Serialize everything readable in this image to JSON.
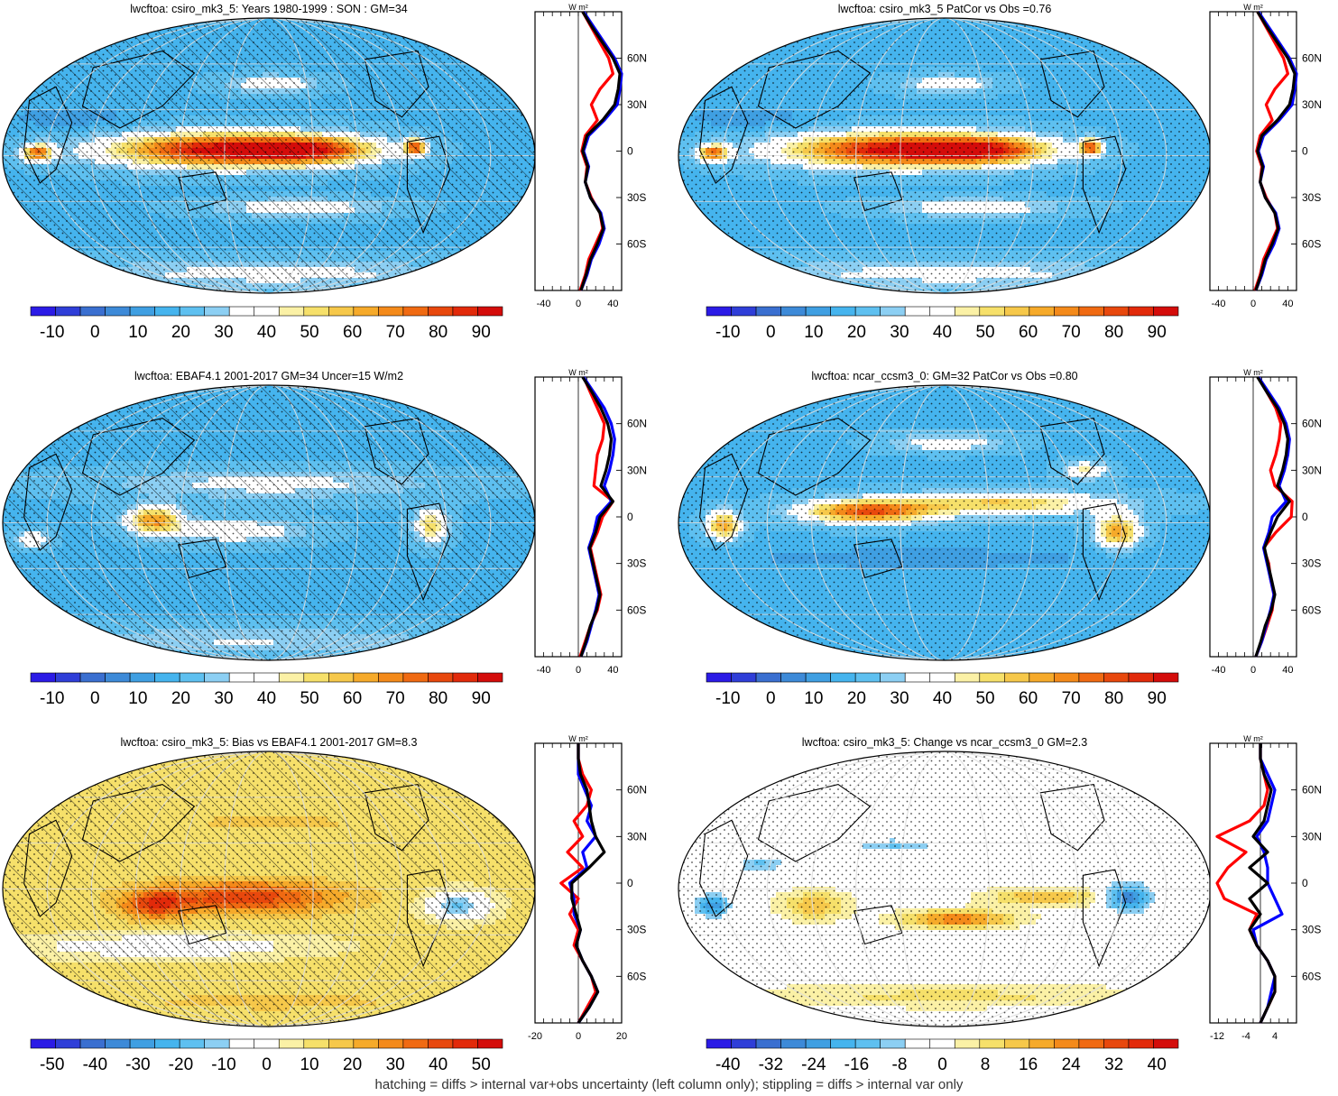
{
  "footer": "hatching = diffs > internal var+obs uncertainty (left column only); stippling = diffs > internal var only",
  "colors": {
    "model": "#ff0000",
    "reference": "#0000ff",
    "third": "#000000",
    "full_scale": [
      "#2b1be6",
      "#2f3ed8",
      "#3a6fd0",
      "#3d8ad8",
      "#3f9fe2",
      "#45b4ee",
      "#5ec0f0",
      "#8ccff3",
      "#ffffff",
      "#ffffff",
      "#fbf1a6",
      "#f6e06a",
      "#f6c84a",
      "#f6aa2a",
      "#f48a1a",
      "#f06a12",
      "#e8480d",
      "#e22a0a",
      "#d40c0a"
    ]
  },
  "panels": [
    {
      "id": "model-climatology",
      "title": "lwcftoa: csiro_mk3_5: Years 1980-1999 : SON : GM=34",
      "hatch": true,
      "stipple": true,
      "colorbar_labels": [
        "-10",
        "0",
        "10",
        "20",
        "30",
        "40",
        "50",
        "60",
        "70",
        "80",
        "90"
      ],
      "field": "model"
    },
    {
      "id": "model-ccsm-pattern",
      "title": "lwcftoa: csiro_mk3_5 PatCor vs Obs =0.76",
      "hatch": false,
      "stipple": true,
      "colorbar_labels": [
        "-10",
        "0",
        "10",
        "20",
        "30",
        "40",
        "50",
        "60",
        "70",
        "80",
        "90"
      ],
      "field": "model"
    },
    {
      "id": "obs-climatology",
      "title": "lwcftoa: EBAF4.1 2001-2017 GM=34 Uncer=15 W/m2",
      "hatch": true,
      "stipple": true,
      "colorbar_labels": [
        "-10",
        "0",
        "10",
        "20",
        "30",
        "40",
        "50",
        "60",
        "70",
        "80",
        "90"
      ],
      "field": "obs"
    },
    {
      "id": "ccsm-climatology",
      "title": "lwcftoa: ncar_ccsm3_0: GM=32 PatCor vs Obs =0.80",
      "hatch": false,
      "stipple": true,
      "colorbar_labels": [
        "-10",
        "0",
        "10",
        "20",
        "30",
        "40",
        "50",
        "60",
        "70",
        "80",
        "90"
      ],
      "field": "ccsm"
    },
    {
      "id": "bias",
      "title": "lwcftoa: csiro_mk3_5: Bias vs EBAF4.1 2001-2017  GM=8.3",
      "hatch": true,
      "stipple": true,
      "colorbar_labels": [
        "-50",
        "-40",
        "-30",
        "-20",
        "-10",
        "0",
        "10",
        "20",
        "30",
        "40",
        "50"
      ],
      "field": "bias"
    },
    {
      "id": "change",
      "title": "lwcftoa: csiro_mk3_5: Change vs ncar_ccsm3_0 GM=2.3",
      "hatch": false,
      "stipple": true,
      "colorbar_labels": [
        "-40",
        "-32",
        "-24",
        "-16",
        "-8",
        "0",
        "8",
        "16",
        "24",
        "32",
        "40"
      ],
      "field": "change"
    }
  ],
  "chart_data": [
    {
      "type": "line",
      "panel": "model-climatology",
      "unit_label": "W m²",
      "xlim": [
        -50,
        50
      ],
      "x_ticks": [
        "-40",
        "0",
        "40"
      ],
      "ylim": [
        -90,
        90
      ],
      "y_ticks": [
        "60N",
        "30N",
        "0",
        "30S",
        "60S"
      ],
      "lat": [
        -90,
        -80,
        -70,
        -60,
        -50,
        -40,
        -30,
        -20,
        -10,
        0,
        10,
        20,
        30,
        40,
        50,
        60,
        70,
        80,
        90
      ],
      "series": [
        {
          "color": "red",
          "values": [
            2,
            8,
            12,
            20,
            28,
            25,
            15,
            8,
            10,
            4,
            8,
            22,
            15,
            25,
            40,
            35,
            25,
            15,
            5
          ]
        },
        {
          "color": "blue",
          "values": [
            3,
            10,
            15,
            24,
            30,
            26,
            14,
            8,
            12,
            6,
            12,
            30,
            45,
            48,
            50,
            42,
            30,
            18,
            6
          ]
        },
        {
          "color": "black",
          "values": [
            3,
            9,
            14,
            22,
            29,
            25,
            14,
            8,
            11,
            5,
            10,
            28,
            42,
            46,
            48,
            40,
            28,
            16,
            5
          ]
        }
      ]
    },
    {
      "type": "line",
      "panel": "model-ccsm-pattern",
      "unit_label": "W m²",
      "xlim": [
        -50,
        50
      ],
      "x_ticks": [
        "-40",
        "0",
        "40"
      ],
      "ylim": [
        -90,
        90
      ],
      "y_ticks": [
        "60N",
        "30N",
        "0",
        "30S",
        "60S"
      ],
      "lat": [
        -90,
        -80,
        -70,
        -60,
        -50,
        -40,
        -30,
        -20,
        -10,
        0,
        10,
        20,
        30,
        40,
        50,
        60,
        70,
        80,
        90
      ],
      "series": [
        {
          "color": "red",
          "values": [
            2,
            8,
            12,
            20,
            28,
            25,
            15,
            8,
            10,
            4,
            8,
            22,
            15,
            25,
            40,
            35,
            25,
            15,
            5
          ]
        },
        {
          "color": "blue",
          "values": [
            3,
            10,
            15,
            24,
            30,
            26,
            14,
            8,
            12,
            6,
            12,
            30,
            45,
            48,
            50,
            42,
            30,
            18,
            6
          ]
        },
        {
          "color": "black",
          "values": [
            3,
            9,
            14,
            22,
            29,
            25,
            14,
            8,
            11,
            5,
            10,
            28,
            42,
            46,
            48,
            40,
            28,
            16,
            5
          ]
        }
      ]
    },
    {
      "type": "line",
      "panel": "obs-climatology",
      "unit_label": "W m²",
      "xlim": [
        -50,
        50
      ],
      "x_ticks": [
        "-40",
        "0",
        "40"
      ],
      "ylim": [
        -90,
        90
      ],
      "y_ticks": [
        "60N",
        "30N",
        "0",
        "30S",
        "60S"
      ],
      "lat": [
        -90,
        -80,
        -70,
        -60,
        -50,
        -40,
        -30,
        -20,
        -10,
        0,
        10,
        20,
        30,
        40,
        50,
        60,
        70,
        80,
        90
      ],
      "series": [
        {
          "color": "red",
          "values": [
            2,
            8,
            14,
            22,
            26,
            22,
            18,
            14,
            22,
            28,
            40,
            18,
            20,
            22,
            28,
            30,
            22,
            14,
            6
          ]
        },
        {
          "color": "blue",
          "values": [
            3,
            10,
            15,
            20,
            24,
            20,
            16,
            12,
            18,
            22,
            38,
            30,
            36,
            40,
            42,
            38,
            30,
            18,
            6
          ]
        },
        {
          "color": "black",
          "values": [
            3,
            9,
            14,
            21,
            25,
            21,
            17,
            13,
            20,
            25,
            40,
            26,
            32,
            36,
            38,
            34,
            26,
            16,
            5
          ]
        }
      ]
    },
    {
      "type": "line",
      "panel": "ccsm-climatology",
      "unit_label": "W m²",
      "xlim": [
        -50,
        50
      ],
      "x_ticks": [
        "-40",
        "0",
        "40"
      ],
      "ylim": [
        -90,
        90
      ],
      "y_ticks": [
        "60N",
        "30N",
        "0",
        "30S",
        "60S"
      ],
      "lat": [
        -90,
        -80,
        -70,
        -60,
        -50,
        -40,
        -30,
        -20,
        -10,
        0,
        10,
        20,
        30,
        40,
        50,
        60,
        70,
        80,
        90
      ],
      "series": [
        {
          "color": "red",
          "values": [
            3,
            10,
            16,
            22,
            24,
            20,
            18,
            12,
            26,
            44,
            45,
            25,
            20,
            26,
            30,
            32,
            26,
            16,
            6
          ]
        },
        {
          "color": "blue",
          "values": [
            3,
            10,
            15,
            20,
            24,
            20,
            16,
            12,
            18,
            22,
            38,
            30,
            36,
            40,
            42,
            38,
            30,
            18,
            6
          ]
        },
        {
          "color": "black",
          "values": [
            3,
            9,
            14,
            21,
            25,
            21,
            17,
            13,
            20,
            28,
            42,
            28,
            34,
            38,
            40,
            36,
            28,
            16,
            5
          ]
        }
      ]
    },
    {
      "type": "line",
      "panel": "bias",
      "unit_label": "W m²",
      "xlim": [
        -20,
        20
      ],
      "x_ticks": [
        "-20",
        "0",
        "20"
      ],
      "ylim": [
        -90,
        90
      ],
      "y_ticks": [
        "60N",
        "30N",
        "0",
        "30S",
        "60S"
      ],
      "lat": [
        -90,
        -80,
        -70,
        -60,
        -50,
        -40,
        -30,
        -20,
        -10,
        0,
        10,
        20,
        30,
        40,
        50,
        60,
        70,
        80,
        90
      ],
      "series": [
        {
          "color": "red",
          "values": [
            0,
            4,
            8,
            6,
            2,
            -2,
            0,
            -4,
            0,
            -8,
            2,
            -5,
            2,
            -2,
            4,
            6,
            2,
            0,
            0
          ]
        },
        {
          "color": "blue",
          "values": [
            0,
            5,
            9,
            6,
            2,
            -1,
            1,
            -2,
            -2,
            -4,
            4,
            2,
            8,
            4,
            6,
            3,
            0,
            0,
            0
          ]
        },
        {
          "color": "black",
          "values": [
            0,
            5,
            9,
            6,
            2,
            -1,
            1,
            -1,
            -3,
            -3,
            5,
            12,
            8,
            6,
            5,
            4,
            1,
            0,
            0
          ]
        }
      ]
    },
    {
      "type": "line",
      "panel": "change",
      "unit_label": "W m²",
      "xlim": [
        -14,
        10
      ],
      "x_ticks": [
        "-12",
        "-4",
        "4"
      ],
      "ylim": [
        -90,
        90
      ],
      "y_ticks": [
        "60N",
        "30N",
        "0",
        "30S",
        "60S"
      ],
      "lat": [
        -90,
        -80,
        -70,
        -60,
        -50,
        -40,
        -30,
        -20,
        -10,
        0,
        10,
        20,
        30,
        40,
        50,
        60,
        70,
        80,
        90
      ],
      "series": [
        {
          "color": "red",
          "values": [
            0,
            2,
            4,
            4,
            2,
            -1,
            -3,
            -1,
            -10,
            -12,
            -9,
            -4,
            -12,
            -3,
            1,
            2,
            1,
            0,
            0
          ]
        },
        {
          "color": "blue",
          "values": [
            0,
            2,
            3,
            4,
            2,
            -1,
            -2,
            6,
            4,
            2,
            2,
            1,
            -1,
            2,
            3,
            4,
            2,
            0,
            0
          ]
        },
        {
          "color": "black",
          "values": [
            0,
            2,
            4,
            4,
            2,
            -1,
            -3,
            0,
            -3,
            2,
            -3,
            2,
            -2,
            1,
            2,
            3,
            1,
            0,
            0
          ]
        }
      ]
    }
  ]
}
